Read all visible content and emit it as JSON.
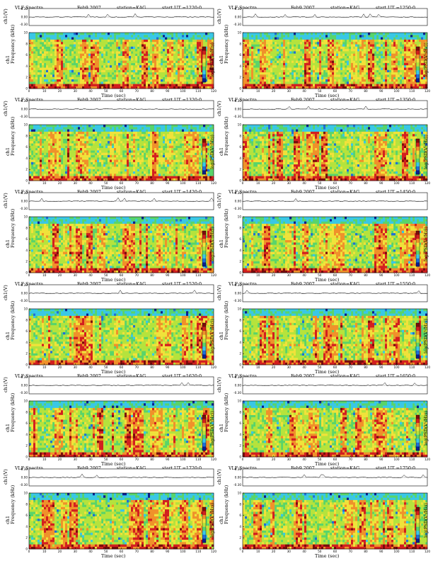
{
  "figure": {
    "common": {
      "title": "VLF Spectra",
      "date": "Feb9,2007",
      "station": "station=KAG",
      "ut_prefix": "start UT =",
      "xlabel": "Time (sec)",
      "ylabel_channel": "ch1(V)",
      "ylabel_freq": "Frequency (kHz)",
      "ylabel_ch1": "ch1",
      "colorbar_label": "log(PSD(V²/Hz))"
    },
    "panels": [
      {
        "ut": "1220:0"
      },
      {
        "ut": "1250:0"
      },
      {
        "ut": "1320:0"
      },
      {
        "ut": "1350:0"
      },
      {
        "ut": "1420:0"
      },
      {
        "ut": "1450:0"
      },
      {
        "ut": "1520:0"
      },
      {
        "ut": "1550:0"
      },
      {
        "ut": "1620:0"
      },
      {
        "ut": "1650:0"
      },
      {
        "ut": "1720:0"
      },
      {
        "ut": "1750:0"
      }
    ]
  },
  "chart_data": {
    "type": "heatmap",
    "description_axes": {
      "x": {
        "label": "Time (sec)",
        "range": [
          0,
          120
        ],
        "ticks": [
          0,
          10,
          20,
          30,
          40,
          50,
          60,
          70,
          80,
          90,
          100,
          110,
          120
        ]
      },
      "y_freq": {
        "label": "Frequency (kHz)",
        "range": [
          0,
          10
        ],
        "ticks": [
          0,
          2,
          4,
          6,
          8,
          10
        ]
      },
      "y_amp": {
        "label": "ch1(V)",
        "range": [
          -0.3,
          0.3
        ],
        "ticks": [
          "0.30",
          "0.00",
          "-0.30"
        ]
      }
    },
    "colorscale": [
      "#0a1f8f",
      "#1f6fd6",
      "#39c7e6",
      "#59d46a",
      "#b6e33c",
      "#f1e23a",
      "#f0912a",
      "#d31f1f",
      "#7a0c0c"
    ],
    "panel_count": 12
  }
}
